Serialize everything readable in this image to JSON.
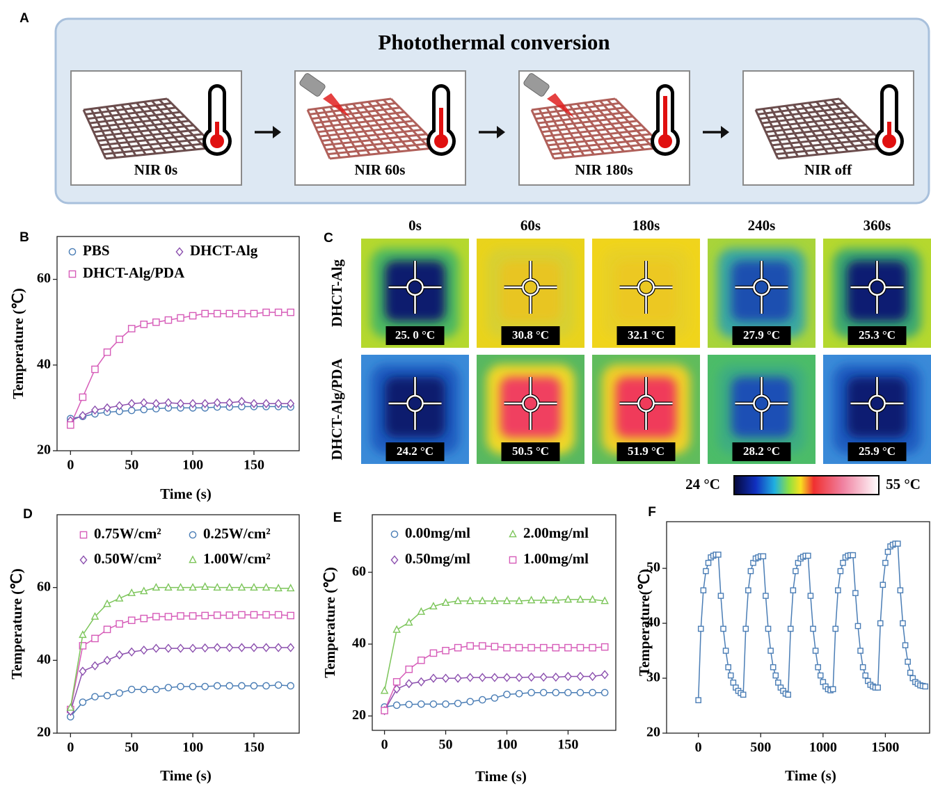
{
  "panel_labels": [
    "A",
    "B",
    "C",
    "D",
    "E",
    "F"
  ],
  "schematic": {
    "title": "Photothermal conversion",
    "steps": [
      "NIR 0s",
      "NIR 60s",
      "NIR 180s",
      "NIR off"
    ]
  },
  "thermal": {
    "times": [
      "0s",
      "60s",
      "180s",
      "240s",
      "360s"
    ],
    "rows": [
      {
        "label": "DHCT-Alg",
        "temperatures": [
          "25. 0 °C",
          "30.8 °C",
          "32.1 °C",
          "27.9 °C",
          "25.3 °C"
        ]
      },
      {
        "label": "DHCT-Alg/PDA",
        "temperatures": [
          "24.2 °C",
          "50.5 °C",
          "51.9 °C",
          "28.2 °C",
          "25.9 °C"
        ]
      }
    ],
    "colorbar": {
      "min_label": "24 °C",
      "max_label": "55 °C"
    }
  },
  "chart_data": [
    {
      "type": "line",
      "y_label": "Temperature (℃)",
      "x_label": "Time (s)",
      "x": [
        0,
        10,
        20,
        30,
        40,
        50,
        60,
        70,
        80,
        90,
        100,
        110,
        120,
        130,
        140,
        150,
        160,
        170,
        180
      ],
      "xlim": [
        -11,
        187
      ],
      "ylim": [
        20,
        70
      ],
      "xticks": [
        0,
        50,
        100,
        150
      ],
      "yticks": [
        20,
        40,
        60
      ],
      "series": [
        {
          "name": "PBS",
          "color": "#4a7db5",
          "marker": "circle",
          "values": [
            27.5,
            28,
            28.6,
            29,
            29.2,
            29.4,
            29.6,
            29.8,
            30,
            30,
            30,
            30,
            30.2,
            30.2,
            30.3,
            30.3,
            30.3,
            30.3,
            30.2
          ]
        },
        {
          "name": "DHCT-Alg",
          "color": "#8b4fae",
          "marker": "diamond",
          "values": [
            27,
            28.2,
            29.5,
            30,
            30.5,
            31,
            31.2,
            31,
            31.2,
            31,
            31,
            31,
            31.2,
            31.2,
            31.5,
            31,
            31,
            31,
            31
          ]
        },
        {
          "name": "DHCT-Alg/PDA",
          "color": "#d65bb8",
          "marker": "square",
          "values": [
            26,
            32.5,
            39,
            43,
            46,
            48.5,
            49.5,
            50,
            50.5,
            51,
            51.5,
            52,
            52,
            52,
            52,
            52,
            52.3,
            52.3,
            52.3
          ]
        }
      ]
    },
    {
      "type": "line",
      "y_label": "Temperature (℃)",
      "x_label": "Time (s)",
      "x": [
        0,
        10,
        20,
        30,
        40,
        50,
        60,
        70,
        80,
        90,
        100,
        110,
        120,
        130,
        140,
        150,
        160,
        170,
        180
      ],
      "xlim": [
        -11,
        187
      ],
      "ylim": [
        20,
        80
      ],
      "xticks": [
        0,
        50,
        100,
        150
      ],
      "yticks": [
        20,
        40,
        60
      ],
      "series": [
        {
          "name": "0.75W/cm²",
          "color": "#d65bb8",
          "marker": "square",
          "values": [
            26.5,
            44,
            46,
            48.5,
            50,
            51,
            51.5,
            52,
            52,
            52.2,
            52.2,
            52.3,
            52.4,
            52.4,
            52.5,
            52.5,
            52.5,
            52.5,
            52.3
          ]
        },
        {
          "name": "0.25W/cm²",
          "color": "#4a7db5",
          "marker": "circle",
          "values": [
            24.5,
            28.5,
            30,
            30.3,
            31,
            32,
            32,
            32,
            32.5,
            32.8,
            32.8,
            32.8,
            33,
            33,
            33,
            33,
            33,
            33.2,
            33
          ]
        },
        {
          "name": "0.50W/cm²",
          "color": "#8b4fae",
          "marker": "diamond",
          "values": [
            26,
            37,
            38.5,
            40,
            41.5,
            42.3,
            42.8,
            43.3,
            43.3,
            43.3,
            43.3,
            43.4,
            43.5,
            43.5,
            43.5,
            43.5,
            43.5,
            43.5,
            43.5
          ]
        },
        {
          "name": "1.00W/cm²",
          "color": "#7cc55a",
          "marker": "triangle",
          "values": [
            27,
            47,
            52,
            55.5,
            57,
            58.5,
            59,
            60,
            60,
            60,
            60,
            60.2,
            60,
            60,
            60,
            60,
            60,
            59.8,
            59.8
          ]
        }
      ]
    },
    {
      "type": "line",
      "y_label": "Temperature (℃)",
      "x_label": "Time (s)",
      "x": [
        0,
        10,
        20,
        30,
        40,
        50,
        60,
        70,
        80,
        90,
        100,
        110,
        120,
        130,
        140,
        150,
        160,
        170,
        180
      ],
      "xlim": [
        -10,
        189
      ],
      "ylim": [
        16,
        76
      ],
      "xticks": [
        0,
        50,
        100,
        150
      ],
      "yticks": [
        20,
        40,
        60
      ],
      "series": [
        {
          "name": "0.00mg/ml",
          "color": "#4a7db5",
          "marker": "circle",
          "values": [
            22.5,
            23,
            23.2,
            23.3,
            23.3,
            23.3,
            23.5,
            24,
            24.5,
            25,
            26,
            26.2,
            26.5,
            26.5,
            26.5,
            26.5,
            26.5,
            26.5,
            26.5
          ]
        },
        {
          "name": "2.00mg/ml",
          "color": "#7cc55a",
          "marker": "triangle",
          "values": [
            27,
            44,
            46,
            49,
            50.5,
            51.5,
            52,
            52,
            52,
            52,
            52,
            52,
            52.2,
            52.2,
            52.2,
            52.4,
            52.4,
            52.4,
            52
          ]
        },
        {
          "name": "0.50mg/ml",
          "color": "#8b4fae",
          "marker": "diamond",
          "values": [
            21.5,
            27.5,
            29,
            29.5,
            30.5,
            30.5,
            30.5,
            30.7,
            30.7,
            30.7,
            30.7,
            30.7,
            30.8,
            30.8,
            30.8,
            31,
            31,
            31,
            31.5
          ]
        },
        {
          "name": "1.00mg/ml",
          "color": "#d65bb8",
          "marker": "square",
          "values": [
            21.5,
            29.5,
            33,
            35.5,
            37.5,
            38.2,
            39,
            39.5,
            39.5,
            39.3,
            39,
            39,
            39,
            39,
            39,
            39,
            39,
            39,
            39.2
          ]
        }
      ]
    },
    {
      "type": "line",
      "y_label": "Temperature(℃)",
      "x_label": "Time (s)",
      "x": [
        0,
        20,
        40,
        60,
        80,
        100,
        120,
        140,
        160,
        180,
        200,
        220,
        240,
        260,
        280,
        300,
        320,
        340,
        360,
        380,
        400,
        420,
        440,
        460,
        480,
        500,
        520,
        540,
        560,
        580,
        600,
        620,
        640,
        660,
        680,
        700,
        720,
        740,
        760,
        780,
        800,
        820,
        840,
        860,
        880,
        900,
        920,
        940,
        960,
        980,
        1000,
        1020,
        1040,
        1060,
        1080,
        1100,
        1120,
        1140,
        1160,
        1180,
        1200,
        1220,
        1240,
        1260,
        1280,
        1300,
        1320,
        1340,
        1360,
        1380,
        1400,
        1420,
        1440,
        1460,
        1480,
        1500,
        1520,
        1540,
        1560,
        1580,
        1600,
        1620,
        1640,
        1660,
        1680,
        1700,
        1720,
        1740,
        1760,
        1780,
        1800,
        1820
      ],
      "xlim": [
        -255,
        1855
      ],
      "ylim": [
        20,
        58.5
      ],
      "xticks": [
        0,
        500,
        1000,
        1500
      ],
      "yticks": [
        20,
        30,
        40,
        50
      ],
      "color": "#4a7db5",
      "marker": "square",
      "values": [
        26,
        39,
        46,
        49.5,
        51,
        52,
        52.3,
        52.5,
        52.5,
        45,
        39,
        35,
        32,
        30.5,
        29.2,
        28.3,
        27.7,
        27.3,
        27,
        39,
        46,
        49.5,
        51,
        51.8,
        52,
        52.2,
        52.2,
        45,
        39,
        35,
        32,
        30.5,
        29.2,
        28.3,
        27.7,
        27.2,
        27,
        39,
        46,
        49.5,
        51,
        51.8,
        52.1,
        52.3,
        52.3,
        45,
        39,
        35,
        32,
        30.5,
        29.3,
        28.5,
        28,
        27.8,
        28,
        39,
        46,
        49.5,
        51,
        52,
        52.3,
        52.4,
        52.4,
        45.5,
        39.5,
        35,
        32,
        30.5,
        29.5,
        28.8,
        28.5,
        28.3,
        28.3,
        40,
        47,
        51,
        53,
        54,
        54.3,
        54.5,
        54.5,
        46,
        40,
        36,
        33,
        31,
        30,
        29.3,
        29,
        28.7,
        28.6,
        28.5
      ]
    }
  ]
}
